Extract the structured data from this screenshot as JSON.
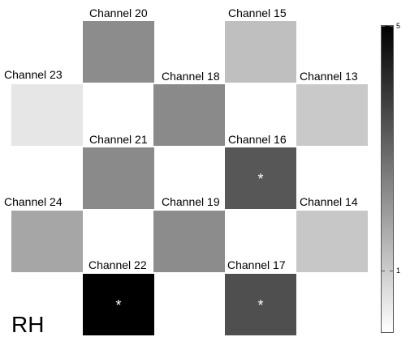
{
  "hemisphere_label": "RH",
  "chart_data": {
    "type": "heatmap",
    "title": "",
    "value_range": [
      0,
      5
    ],
    "colormap": {
      "low": "#ffffff",
      "high": "#000000"
    },
    "colorbar": {
      "ticks": [
        1,
        5
      ],
      "tick_labels": [
        "1",
        "5"
      ],
      "placement": "right"
    },
    "channels": [
      {
        "name": "Channel 20",
        "value": 2.25,
        "significant": false
      },
      {
        "name": "Channel 15",
        "value": 1.25,
        "significant": false
      },
      {
        "name": "Channel 23",
        "value": 0.5,
        "significant": false
      },
      {
        "name": "Channel 18",
        "value": 2.3,
        "significant": false
      },
      {
        "name": "Channel 13",
        "value": 1.05,
        "significant": false
      },
      {
        "name": "Channel 21",
        "value": 2.3,
        "significant": false
      },
      {
        "name": "Channel 16",
        "value": 3.3,
        "significant": true
      },
      {
        "name": "Channel 24",
        "value": 1.75,
        "significant": false
      },
      {
        "name": "Channel 19",
        "value": 2.25,
        "significant": false
      },
      {
        "name": "Channel 14",
        "value": 1.1,
        "significant": false
      },
      {
        "name": "Channel 22",
        "value": 5.0,
        "significant": true
      },
      {
        "name": "Channel 17",
        "value": 3.45,
        "significant": true
      }
    ],
    "significance_marker": "*"
  }
}
